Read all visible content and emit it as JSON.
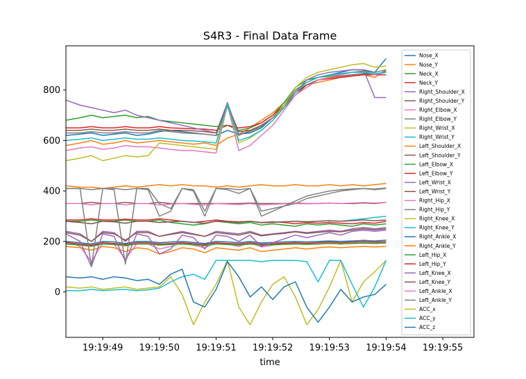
{
  "chart_data": {
    "type": "line",
    "title": "S4R3 - Final Data Frame",
    "xlabel": "time",
    "ylabel": "",
    "x_ticks": [
      "19:19:49",
      "19:19:50",
      "19:19:51",
      "19:19:52",
      "19:19:53",
      "19:19:54",
      "19:19:55"
    ],
    "xlim": [
      48.35,
      55.55
    ],
    "y_ticks": [
      0,
      200,
      400,
      600,
      800
    ],
    "ylim": [
      -180,
      975
    ],
    "legend_position": "right",
    "x": [
      48.35,
      48.6,
      48.8,
      49.0,
      49.2,
      49.4,
      49.6,
      49.8,
      50.0,
      50.2,
      50.4,
      50.6,
      50.8,
      51.0,
      51.2,
      51.4,
      51.6,
      51.8,
      52.0,
      52.2,
      52.4,
      52.6,
      52.8,
      53.0,
      53.2,
      53.4,
      53.6,
      53.8,
      54.0
    ],
    "series": [
      {
        "name": "Nose_X",
        "color": "#1f77b4",
        "values": [
          620,
          625,
          630,
          620,
          625,
          630,
          620,
          625,
          635,
          640,
          635,
          630,
          625,
          620,
          640,
          625,
          630,
          650,
          690,
          740,
          800,
          830,
          850,
          860,
          870,
          880,
          880,
          870,
          925
        ]
      },
      {
        "name": "Nose_Y",
        "color": "#ff7f0e",
        "values": [
          580,
          590,
          600,
          585,
          590,
          600,
          590,
          595,
          600,
          595,
          590,
          585,
          590,
          580,
          610,
          625,
          650,
          680,
          710,
          750,
          800,
          820,
          830,
          840,
          850,
          855,
          860,
          850,
          880
        ]
      },
      {
        "name": "Neck_X",
        "color": "#2ca02c",
        "values": [
          680,
          690,
          700,
          690,
          695,
          700,
          690,
          695,
          680,
          675,
          670,
          665,
          660,
          655,
          660,
          640,
          650,
          670,
          700,
          750,
          810,
          840,
          850,
          855,
          860,
          870,
          870,
          860,
          875
        ]
      },
      {
        "name": "Neck_Y",
        "color": "#d62728",
        "values": [
          650,
          650,
          655,
          650,
          650,
          655,
          650,
          650,
          655,
          650,
          648,
          646,
          645,
          640,
          660,
          650,
          655,
          670,
          700,
          740,
          790,
          820,
          840,
          845,
          850,
          855,
          860,
          860,
          860
        ]
      },
      {
        "name": "Right_Shoulder_X",
        "color": "#9467bd",
        "values": [
          760,
          740,
          730,
          720,
          710,
          720,
          700,
          690,
          680,
          670,
          660,
          650,
          640,
          630,
          750,
          620,
          640,
          660,
          690,
          730,
          790,
          840,
          860,
          870,
          875,
          880,
          880,
          770,
          770
        ]
      },
      {
        "name": "Right_Shoulder_Y",
        "color": "#8c564b",
        "values": [
          640,
          640,
          645,
          640,
          640,
          645,
          640,
          640,
          645,
          640,
          640,
          638,
          635,
          630,
          740,
          635,
          640,
          660,
          690,
          730,
          780,
          820,
          840,
          850,
          855,
          860,
          865,
          860,
          870
        ]
      },
      {
        "name": "Right_Elbow_X",
        "color": "#e377c2",
        "values": [
          560,
          570,
          575,
          565,
          570,
          580,
          575,
          575,
          570,
          565,
          560,
          560,
          555,
          550,
          740,
          560,
          580,
          620,
          660,
          720,
          780,
          810,
          840,
          850,
          860,
          870,
          875,
          860,
          870
        ]
      },
      {
        "name": "Right_Elbow_Y",
        "color": "#7f7f7f",
        "values": [
          630,
          630,
          635,
          630,
          630,
          635,
          630,
          630,
          640,
          635,
          630,
          628,
          625,
          620,
          735,
          625,
          635,
          655,
          690,
          740,
          800,
          830,
          850,
          860,
          865,
          870,
          875,
          870,
          880
        ]
      },
      {
        "name": "Right_Wrist_X",
        "color": "#bcbd22",
        "values": [
          520,
          530,
          540,
          520,
          530,
          540,
          535,
          540,
          590,
          585,
          580,
          575,
          570,
          565,
          745,
          590,
          610,
          640,
          680,
          740,
          810,
          850,
          870,
          880,
          890,
          900,
          905,
          890,
          895
        ]
      },
      {
        "name": "Right_Wrist_Y",
        "color": "#17becf",
        "values": [
          600,
          605,
          610,
          600,
          605,
          610,
          605,
          605,
          610,
          605,
          600,
          598,
          595,
          590,
          745,
          600,
          615,
          640,
          680,
          730,
          790,
          830,
          850,
          860,
          865,
          870,
          870,
          865,
          870
        ]
      },
      {
        "name": "Left_Shoulder_X",
        "color": "#ff7f0e",
        "values": [
          420,
          415,
          415,
          410,
          415,
          420,
          415,
          420,
          425,
          420,
          425,
          420,
          420,
          415,
          420,
          415,
          420,
          425,
          420,
          420,
          425,
          420,
          420,
          425,
          420,
          425,
          420,
          425,
          430
        ]
      },
      {
        "name": "Left_Shoulder_Y",
        "color": "#8c564b",
        "values": [
          350,
          350,
          355,
          350,
          350,
          355,
          350,
          350,
          355,
          350,
          350,
          350,
          350,
          350,
          350,
          350,
          352,
          350,
          350,
          350,
          352,
          350,
          350,
          352,
          350,
          350,
          352,
          350,
          355
        ]
      },
      {
        "name": "Left_Elbow_X",
        "color": "#2ca02c",
        "values": [
          280,
          280,
          285,
          280,
          280,
          285,
          280,
          280,
          285,
          275,
          270,
          265,
          270,
          280,
          275,
          270,
          275,
          265,
          270,
          265,
          260,
          270,
          265,
          270,
          265,
          260,
          270,
          265,
          270
        ]
      },
      {
        "name": "Left_Elbow_Y",
        "color": "#d62728",
        "values": [
          285,
          285,
          290,
          285,
          285,
          288,
          285,
          285,
          290,
          285,
          280,
          275,
          280,
          285,
          280,
          278,
          280,
          275,
          278,
          275,
          270,
          275,
          272,
          275,
          272,
          270,
          275,
          272,
          280
        ]
      },
      {
        "name": "Left_Wrist_X",
        "color": "#9467bd",
        "values": [
          240,
          230,
          200,
          240,
          235,
          200,
          240,
          240,
          220,
          230,
          240,
          230,
          220,
          240,
          235,
          230,
          240,
          225,
          230,
          235,
          240,
          235,
          240,
          245,
          240,
          250,
          255,
          250,
          255
        ]
      },
      {
        "name": "Left_Wrist_Y",
        "color": "#8c564b",
        "values": [
          235,
          225,
          200,
          235,
          230,
          205,
          235,
          235,
          220,
          228,
          235,
          228,
          220,
          235,
          230,
          225,
          235,
          222,
          228,
          232,
          238,
          232,
          236,
          240,
          238,
          245,
          250,
          246,
          250
        ]
      },
      {
        "name": "Right_Hip_X",
        "color": "#e377c2",
        "values": [
          200,
          180,
          120,
          195,
          190,
          130,
          190,
          190,
          170,
          180,
          195,
          185,
          175,
          195,
          190,
          180,
          195,
          178,
          185,
          190,
          195,
          190,
          195,
          200,
          195,
          200,
          205,
          200,
          205
        ]
      },
      {
        "name": "Right_Hip_Y",
        "color": "#7f7f7f",
        "values": [
          410,
          410,
          405,
          410,
          410,
          405,
          410,
          410,
          350,
          330,
          410,
          405,
          320,
          410,
          410,
          405,
          410,
          320,
          330,
          340,
          350,
          370,
          380,
          390,
          400,
          405,
          410,
          405,
          410
        ]
      },
      {
        "name": "Right_Knee_X",
        "color": "#bcbd22",
        "values": [
          190,
          185,
          180,
          190,
          188,
          182,
          190,
          190,
          185,
          188,
          190,
          186,
          182,
          190,
          188,
          185,
          190,
          184,
          186,
          188,
          190,
          188,
          190,
          192,
          190,
          192,
          194,
          192,
          195
        ]
      },
      {
        "name": "Right_Knee_Y",
        "color": "#17becf",
        "values": [
          280,
          275,
          270,
          280,
          278,
          272,
          280,
          280,
          275,
          278,
          280,
          276,
          272,
          280,
          278,
          275,
          280,
          274,
          276,
          278,
          280,
          278,
          280,
          282,
          280,
          285,
          290,
          295,
          300
        ]
      },
      {
        "name": "Right_Ankle_X",
        "color": "#1f77b4",
        "values": [
          200,
          195,
          190,
          200,
          198,
          192,
          200,
          200,
          195,
          198,
          200,
          196,
          192,
          200,
          198,
          195,
          200,
          194,
          196,
          198,
          200,
          198,
          200,
          202,
          200,
          202,
          204,
          202,
          205
        ]
      },
      {
        "name": "Right_Ankle_Y",
        "color": "#ff7f0e",
        "values": [
          180,
          175,
          165,
          180,
          175,
          160,
          175,
          170,
          150,
          160,
          175,
          170,
          155,
          175,
          170,
          165,
          175,
          160,
          165,
          170,
          175,
          170,
          175,
          178,
          175,
          178,
          180,
          178,
          180
        ]
      },
      {
        "name": "Left_Hip_X",
        "color": "#2ca02c",
        "values": [
          190,
          186,
          182,
          190,
          188,
          184,
          190,
          190,
          186,
          188,
          190,
          187,
          184,
          190,
          188,
          186,
          190,
          185,
          187,
          189,
          190,
          189,
          190,
          192,
          190,
          192,
          193,
          192,
          194
        ]
      },
      {
        "name": "Left_Hip_Y",
        "color": "#d62728",
        "values": [
          195,
          190,
          185,
          195,
          192,
          188,
          195,
          195,
          190,
          192,
          195,
          191,
          188,
          195,
          192,
          190,
          195,
          189,
          191,
          193,
          195,
          193,
          195,
          197,
          195,
          197,
          199,
          197,
          199
        ]
      },
      {
        "name": "Left_Knee_X",
        "color": "#9467bd",
        "values": [
          230,
          200,
          100,
          230,
          220,
          120,
          230,
          220,
          150,
          170,
          225,
          215,
          170,
          225,
          220,
          200,
          225,
          180,
          195,
          210,
          225,
          215,
          225,
          235,
          225,
          240,
          245,
          240,
          245
        ]
      },
      {
        "name": "Left_Knee_Y",
        "color": "#8c564b",
        "values": [
          280,
          275,
          270,
          280,
          278,
          272,
          280,
          280,
          275,
          278,
          280,
          276,
          272,
          280,
          278,
          275,
          280,
          274,
          276,
          278,
          280,
          278,
          280,
          282,
          280,
          282,
          285,
          282,
          285
        ]
      },
      {
        "name": "Left_Ankle_X",
        "color": "#e377c2",
        "values": [
          350,
          350,
          345,
          350,
          350,
          345,
          350,
          350,
          345,
          348,
          350,
          347,
          344,
          350,
          348,
          346,
          350,
          345,
          347,
          349,
          350,
          349,
          350,
          352,
          350,
          352,
          354,
          352,
          355
        ]
      },
      {
        "name": "Left_Ankle_Y",
        "color": "#7f7f7f",
        "values": [
          410,
          410,
          100,
          410,
          405,
          110,
          410,
          405,
          300,
          320,
          410,
          400,
          300,
          410,
          405,
          390,
          410,
          300,
          320,
          340,
          360,
          380,
          390,
          400,
          405,
          408,
          410,
          408,
          412
        ]
      },
      {
        "name": "ACC_x",
        "color": "#bcbd22",
        "values": [
          20,
          15,
          20,
          10,
          15,
          20,
          10,
          15,
          20,
          60,
          -10,
          -130,
          -40,
          30,
          125,
          -60,
          -130,
          -40,
          30,
          60,
          -20,
          -130,
          -70,
          20,
          125,
          -40,
          40,
          80,
          125
        ]
      },
      {
        "name": "ACC_y",
        "color": "#17becf",
        "values": [
          5,
          5,
          10,
          5,
          8,
          10,
          5,
          8,
          15,
          40,
          60,
          70,
          50,
          125,
          125,
          125,
          125,
          120,
          125,
          125,
          125,
          120,
          40,
          125,
          125,
          30,
          -60,
          20,
          125
        ]
      },
      {
        "name": "ACC_z",
        "color": "#1f77b4",
        "values": [
          60,
          55,
          60,
          50,
          60,
          55,
          45,
          50,
          30,
          70,
          90,
          -40,
          -60,
          10,
          120,
          60,
          -20,
          20,
          -30,
          20,
          40,
          -60,
          -120,
          -60,
          10,
          -40,
          -20,
          -10,
          30
        ]
      }
    ]
  }
}
